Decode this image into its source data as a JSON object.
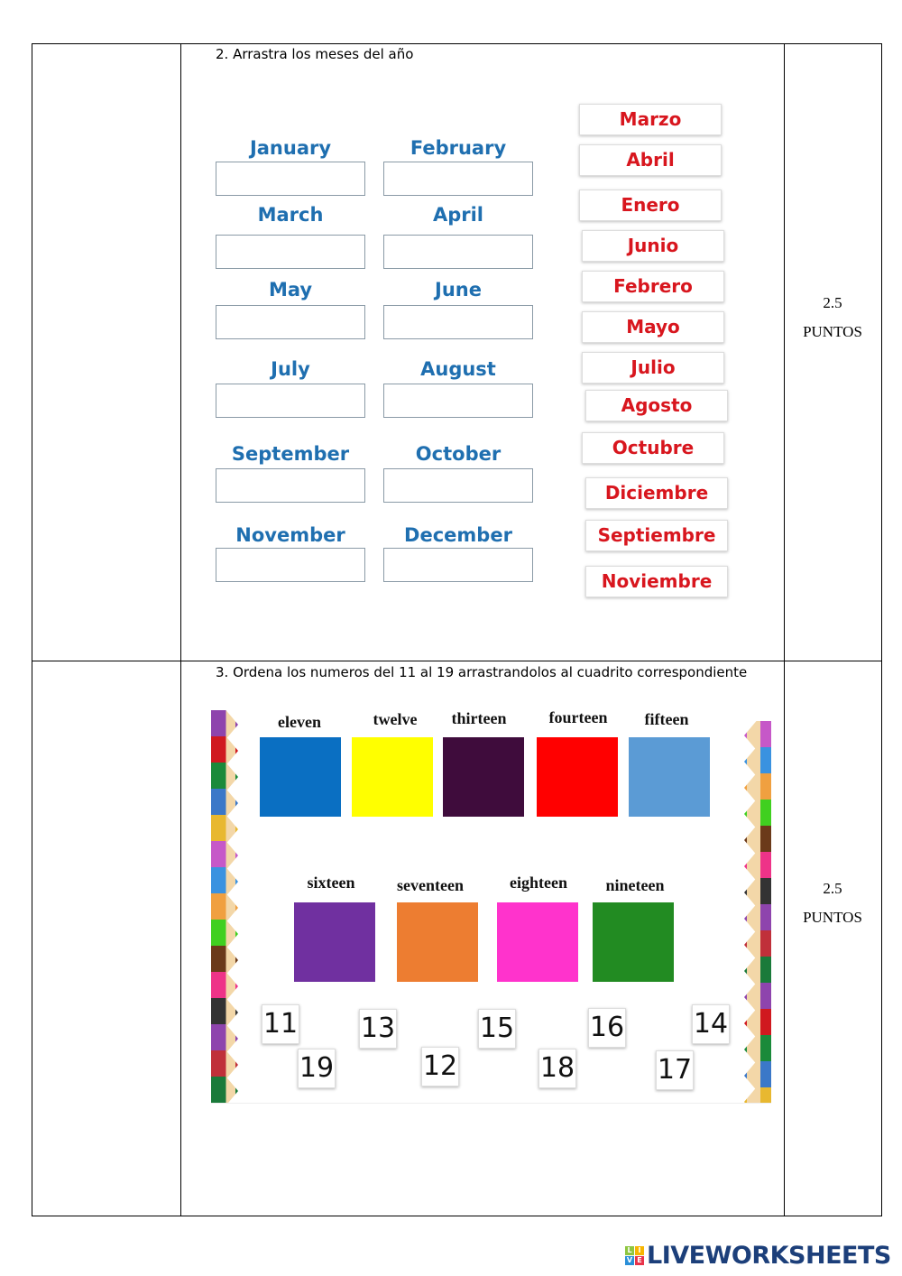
{
  "section2": {
    "instruction": "2.    Arrastra los meses del año",
    "points_value": "2.5",
    "points_label": "PUNTOS",
    "months": [
      "January",
      "February",
      "March",
      "April",
      "May",
      "June",
      "July",
      "August",
      "September",
      "October",
      "November",
      "December"
    ],
    "spanish_tiles": [
      "Marzo",
      "Abril",
      "Enero",
      "Junio",
      "Febrero",
      "Mayo",
      "Julio",
      "Agosto",
      "Octubre",
      "Diciembre",
      "Septiembre",
      "Noviembre"
    ]
  },
  "section3": {
    "instruction": "3.    Ordena los numeros del 11 al 19 arrastrandolos al cuadrito correspondiente",
    "points_value": "2.5",
    "points_label": "PUNTOS",
    "targets": [
      {
        "word": "eleven",
        "color": "#0a6fc2"
      },
      {
        "word": "twelve",
        "color": "#ffff00"
      },
      {
        "word": "thirteen",
        "color": "#3f0c3c"
      },
      {
        "word": "fourteen",
        "color": "#ff0000"
      },
      {
        "word": "fifteen",
        "color": "#5b9bd5"
      },
      {
        "word": "sixteen",
        "color": "#7030a0"
      },
      {
        "word": "seventeen",
        "color": "#ed7d31"
      },
      {
        "word": "eighteen",
        "color": "#ff33cc"
      },
      {
        "word": "nineteen",
        "color": "#228b22"
      }
    ],
    "number_tiles": [
      "11",
      "13",
      "15",
      "16",
      "14",
      "19",
      "12",
      "18",
      "17"
    ]
  },
  "footer": {
    "logo_text": "LIVEWORKSHEETS",
    "logo_letters": [
      "L",
      "I",
      "V",
      "E"
    ]
  }
}
